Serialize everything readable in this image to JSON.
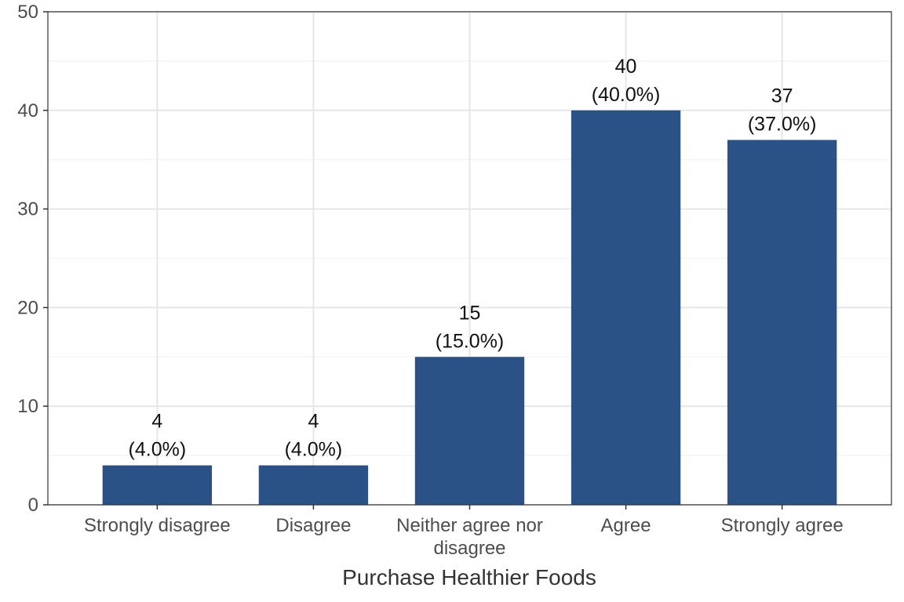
{
  "chart_data": {
    "type": "bar",
    "categories": [
      "Strongly disagree",
      "Disagree",
      "Neither agree nor disagree",
      "Agree",
      "Strongly agree"
    ],
    "category_lines": [
      [
        "Strongly disagree"
      ],
      [
        "Disagree"
      ],
      [
        "Neither agree nor",
        "disagree"
      ],
      [
        "Agree"
      ],
      [
        "Strongly agree"
      ]
    ],
    "values": [
      4,
      4,
      15,
      40,
      37
    ],
    "value_labels": [
      "4",
      "4",
      "15",
      "40",
      "37"
    ],
    "percent_labels": [
      "(4.0%)",
      "(4.0%)",
      "(15.0%)",
      "(40.0%)",
      "(37.0%)"
    ],
    "title": "",
    "xlabel": "Purchase Healthier Foods",
    "ylabel": "",
    "ylim": [
      0,
      50
    ],
    "yticks": [
      0,
      10,
      20,
      30,
      40,
      50
    ],
    "grid": true,
    "legend": "none",
    "colors": {
      "bar": "#2a5286",
      "grid_major": "#e6e6e6",
      "grid_minor": "#f2f2f2",
      "panel_border": "#333333"
    }
  }
}
